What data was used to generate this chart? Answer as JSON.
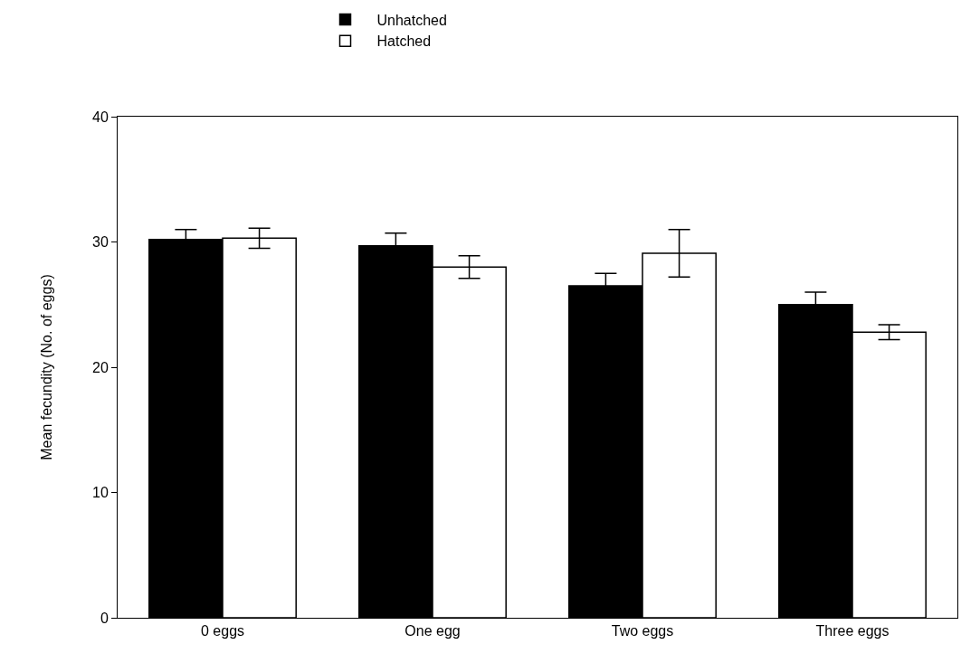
{
  "chart_data": {
    "type": "bar",
    "ylabel": "Mean fecundity (No. of eggs)",
    "categories": [
      "0 eggs",
      "One egg",
      "Two eggs",
      "Three eggs"
    ],
    "series": [
      {
        "name": "Unhatched",
        "color": "#000000",
        "values": [
          30.2,
          29.7,
          26.5,
          25.0
        ],
        "errors": [
          0.8,
          1.0,
          1.0,
          1.0
        ]
      },
      {
        "name": "Hatched",
        "color": "#ffffff",
        "values": [
          30.3,
          28.0,
          29.1,
          22.8
        ],
        "errors": [
          0.8,
          0.9,
          1.9,
          0.6
        ]
      }
    ],
    "ylim": [
      0,
      40
    ],
    "yticks": [
      0,
      10,
      20,
      30,
      40
    ],
    "grid": false,
    "legend": "top"
  }
}
